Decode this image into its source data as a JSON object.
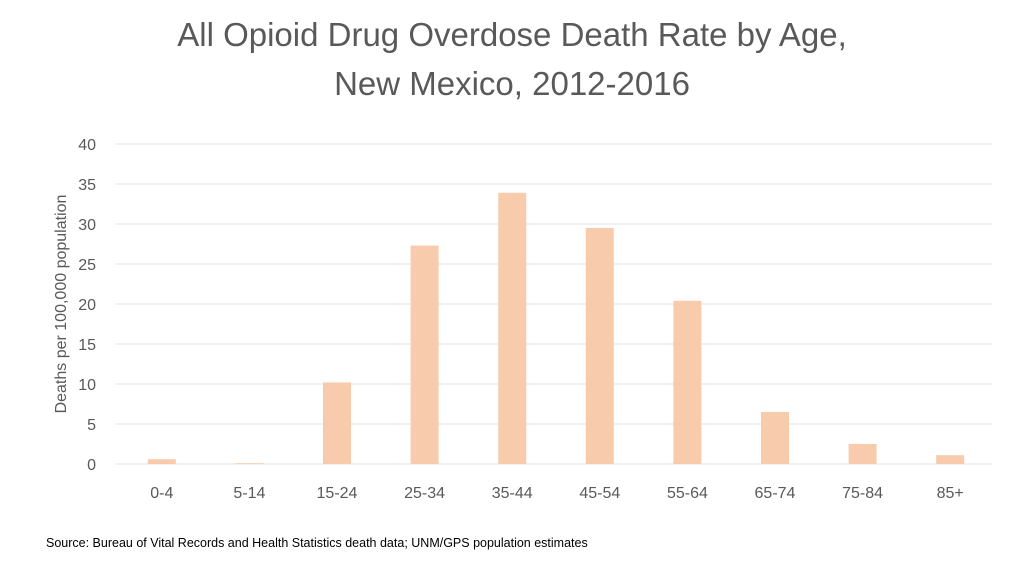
{
  "chart_data": {
    "type": "bar",
    "title_lines": [
      "All Opioid Drug Overdose Death Rate by Age,",
      "New Mexico, 2012-2016"
    ],
    "xlabel": "",
    "ylabel": "Deaths per 100,000 population",
    "categories": [
      "0-4",
      "5-14",
      "15-24",
      "25-34",
      "35-44",
      "45-54",
      "55-64",
      "65-74",
      "75-84",
      "85+"
    ],
    "values": [
      0.6,
      0.1,
      10.2,
      27.3,
      33.9,
      29.5,
      20.4,
      6.5,
      2.5,
      1.1
    ],
    "ylim": [
      0,
      40
    ],
    "yticks": [
      "0",
      "5",
      "10",
      "15",
      "20",
      "25",
      "30",
      "35",
      "40"
    ],
    "grid": true,
    "legend": "none",
    "bar_color": "#f8cbad",
    "grid_color": "#e3e3e3",
    "text_color": "#595959"
  },
  "source": "Source:  Bureau of Vital Records and Health Statistics death data; UNM/GPS population estimates"
}
